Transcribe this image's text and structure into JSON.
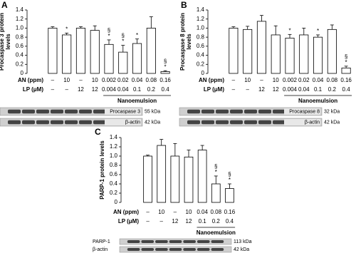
{
  "chart_data": [
    {
      "type": "bar",
      "panel": "A",
      "ylabel": [
        "Procaspase 3 protein",
        "levels"
      ],
      "color": "#ffffff",
      "ylim": [
        0,
        1.4
      ],
      "yticks": [
        0,
        0.2,
        0.4,
        0.6,
        0.8,
        {
          "value": 1,
          "label": "1.0"
        },
        1.2,
        1.4
      ],
      "values": [
        1.0,
        0.85,
        1.0,
        0.95,
        0.64,
        0.47,
        0.66,
        1.0,
        0.04
      ],
      "errors": [
        0.03,
        0.04,
        0.03,
        0.1,
        0.1,
        0.15,
        0.1,
        0.25,
        0.02
      ],
      "annotations": [
        null,
        [
          "*"
        ],
        null,
        null,
        [
          "§",
          "*"
        ],
        [
          "§",
          "*"
        ],
        [
          "*"
        ],
        null,
        [
          "§",
          "*"
        ]
      ],
      "rows": [
        {
          "label": "AN (ppm)",
          "cells": [
            "–",
            "10",
            "–",
            "10",
            "0.002",
            "0.02",
            "0.04",
            "0.08",
            "0.16"
          ]
        },
        {
          "label": "LP (μM)",
          "cells": [
            "–",
            "–",
            "12",
            "12",
            "0.004",
            "0.04",
            "0.1",
            "0.2",
            "0.4"
          ]
        }
      ],
      "group": {
        "label": "Nanoemulsion",
        "from": 4,
        "to": 8
      },
      "blots": [
        {
          "label": "Procaspase 3",
          "size": "55 kDa"
        },
        {
          "label": "β-actin",
          "size": "42 kDa"
        }
      ]
    },
    {
      "type": "bar",
      "panel": "B",
      "ylabel": [
        "Procaspase 8 protein",
        "levels"
      ],
      "color": "#ffffff",
      "ylim": [
        0,
        1.4
      ],
      "yticks": [
        0,
        0.2,
        0.4,
        0.6,
        0.8,
        {
          "value": 1,
          "label": "1.0"
        },
        1.2,
        1.4
      ],
      "values": [
        1.0,
        0.97,
        1.15,
        0.85,
        0.78,
        0.85,
        0.8,
        0.97,
        0.12
      ],
      "errors": [
        0.03,
        0.07,
        0.13,
        0.2,
        0.08,
        0.15,
        0.05,
        0.1,
        0.04
      ],
      "annotations": [
        null,
        null,
        null,
        null,
        [
          "*"
        ],
        null,
        [
          "*"
        ],
        null,
        [
          "§",
          "*"
        ]
      ],
      "rows": [
        {
          "label": "AN (ppm)",
          "cells": [
            "–",
            "10",
            "–",
            "10",
            "0.002",
            "0.02",
            "0.04",
            "0.08",
            "0.16"
          ]
        },
        {
          "label": "LP (μM)",
          "cells": [
            "–",
            "–",
            "12",
            "12",
            "0.004",
            "0.04",
            "0.1",
            "0.2",
            "0.4"
          ]
        }
      ],
      "group": {
        "label": "Nanoemulsion",
        "from": 4,
        "to": 8
      },
      "blots": [
        {
          "label": "Procaspase 8",
          "size": "32 kDa"
        },
        {
          "label": "β-actin",
          "size": "42 kDa"
        }
      ]
    },
    {
      "type": "bar",
      "panel": "C",
      "ylabel": [
        "PARP-1 protein levels"
      ],
      "color": "#ffffff",
      "ylim": [
        0,
        1.4
      ],
      "yticks": [
        0,
        0.2,
        0.4,
        0.6,
        0.8,
        {
          "value": 1,
          "label": "1.0"
        },
        1.2,
        1.4
      ],
      "values": [
        1.0,
        1.23,
        1.0,
        0.98,
        1.13,
        0.4,
        0.3
      ],
      "errors": [
        0.02,
        0.13,
        0.27,
        0.15,
        0.1,
        0.17,
        0.1
      ],
      "annotations": [
        null,
        null,
        null,
        null,
        null,
        [
          "§",
          "*"
        ],
        [
          "§",
          "*"
        ]
      ],
      "rows": [
        {
          "label": "AN (ppm)",
          "cells": [
            "–",
            "10",
            "–",
            "10",
            "0.04",
            "0.08",
            "0.16"
          ]
        },
        {
          "label": "LP (μM)",
          "cells": [
            "–",
            "–",
            "12",
            "12",
            "0.1",
            "0.2",
            "0.4"
          ]
        }
      ],
      "group": {
        "label": "Nanoemulsion",
        "from": 4,
        "to": 6
      },
      "blots": [
        {
          "label": "PARP-1",
          "size": "113 kDa"
        },
        {
          "label": "β-actin",
          "size": "42 kDa"
        }
      ]
    }
  ]
}
